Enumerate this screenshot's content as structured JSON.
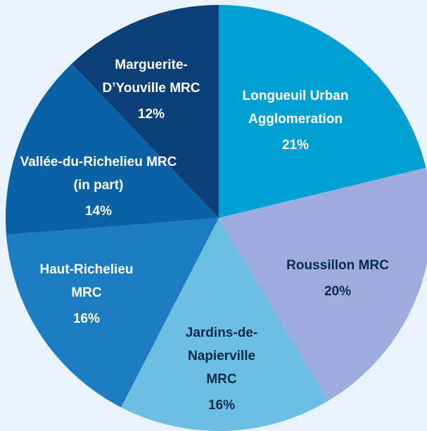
{
  "chart_data": {
    "type": "pie",
    "categories": [
      "Longueuil Urban Agglomeration",
      "Roussillon MRC",
      "Jardins-de-Napierville MRC",
      "Haut-Richelieu MRC",
      "Vallée-du-Richelieu MRC (in part)",
      "Marguerite-D’Youville MRC"
    ],
    "values": [
      21,
      20,
      16,
      16,
      14,
      12
    ],
    "value_labels": [
      "21%",
      "20%",
      "16%",
      "16%",
      "14%",
      "12%"
    ],
    "colors": [
      "#00a0d3",
      "#9cacdc",
      "#6cbee2",
      "#1b7cbf",
      "#0a61a6",
      "#0b3f78"
    ],
    "label_colors": [
      "#ffffff",
      "#0b2a4a",
      "#0b2a4a",
      "#ffffff",
      "#ffffff",
      "#ffffff"
    ]
  }
}
